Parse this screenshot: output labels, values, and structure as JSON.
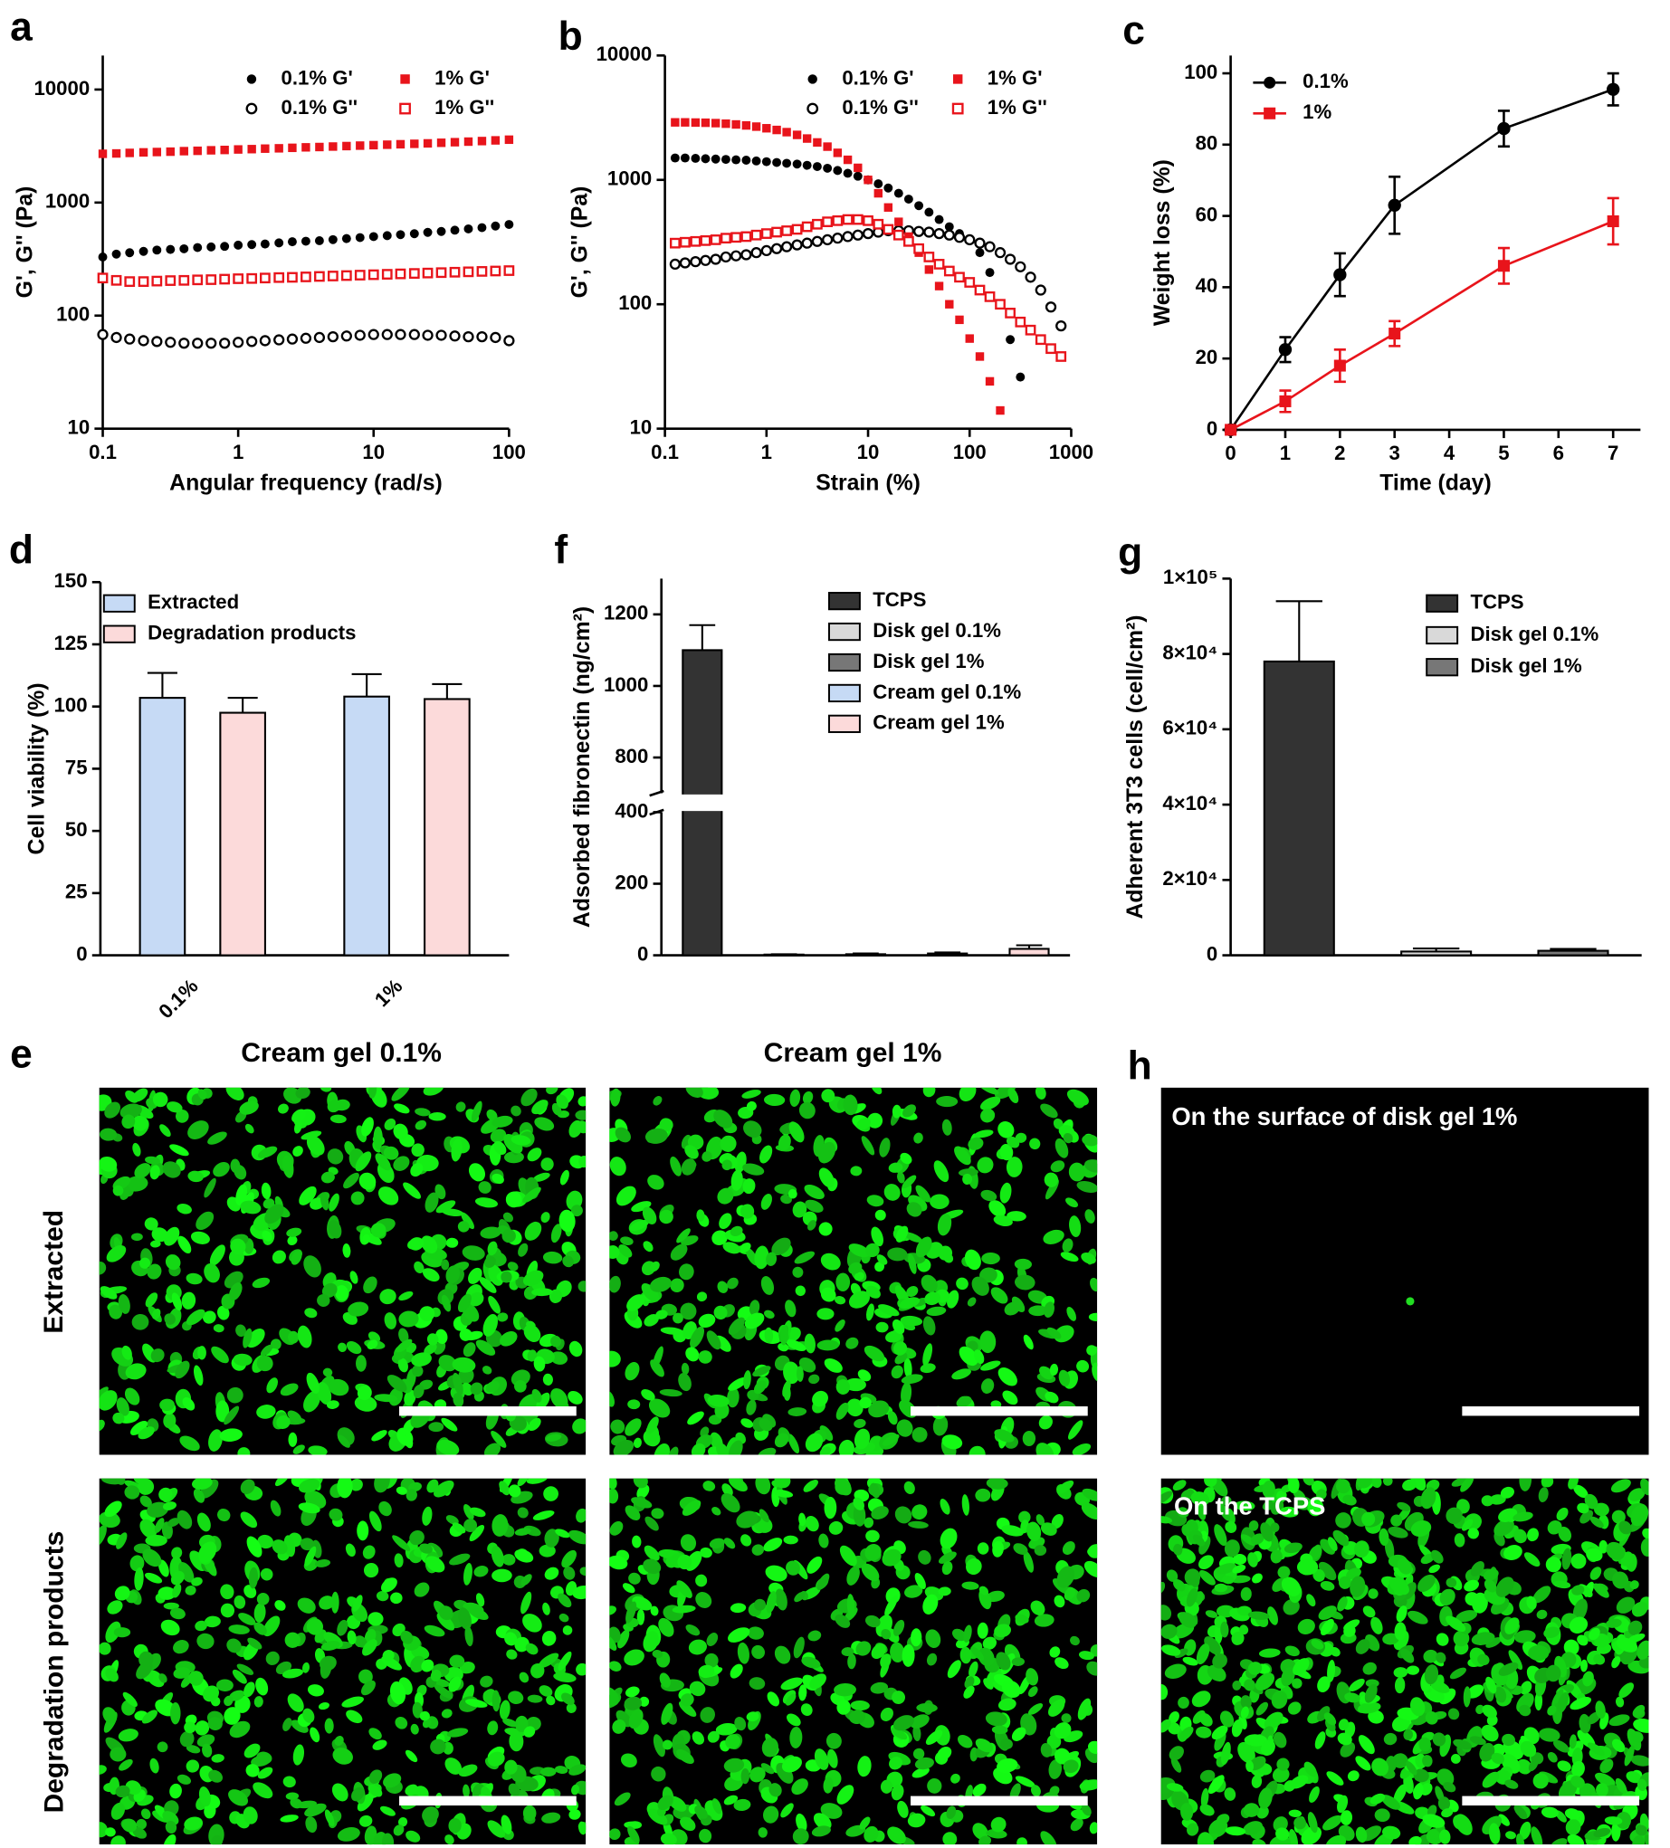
{
  "chart_data": [
    {
      "label": "a",
      "type": "scatter",
      "xlabel": "Angular frequency (rad/s)",
      "ylabel": "G', G'' (Pa)",
      "xscale": "log",
      "yscale": "log",
      "xlim": [
        0.1,
        100
      ],
      "ylim": [
        10,
        20000
      ],
      "xticks": [
        0.1,
        1,
        10,
        100
      ],
      "yticks": [
        10,
        100,
        1000,
        10000
      ],
      "x": [
        0.1,
        0.126,
        0.158,
        0.2,
        0.251,
        0.316,
        0.398,
        0.501,
        0.631,
        0.794,
        1,
        1.26,
        1.58,
        2,
        2.51,
        3.16,
        3.98,
        5.01,
        6.31,
        7.94,
        10,
        12.6,
        15.8,
        20,
        25.1,
        31.6,
        39.8,
        50.1,
        63.1,
        79.4,
        100
      ],
      "series": [
        {
          "name": "0.1% G'",
          "color": "#000000",
          "marker": "circle",
          "filled": true,
          "values": [
            330,
            350,
            360,
            370,
            380,
            385,
            390,
            400,
            405,
            410,
            420,
            425,
            430,
            440,
            450,
            455,
            460,
            470,
            480,
            490,
            500,
            510,
            520,
            530,
            545,
            555,
            570,
            585,
            600,
            620,
            640
          ]
        },
        {
          "name": "0.1% G''",
          "color": "#000000",
          "marker": "circle",
          "filled": false,
          "values": [
            68,
            64,
            62,
            60,
            59,
            58,
            57,
            57,
            57,
            57,
            58,
            59,
            60,
            61,
            62,
            63,
            64,
            65,
            66,
            67,
            68,
            68,
            68,
            68,
            67,
            67,
            66,
            65,
            65,
            64,
            60
          ]
        },
        {
          "name": "1% G'",
          "color": "#e8141b",
          "marker": "square",
          "filled": true,
          "values": [
            2700,
            2720,
            2750,
            2780,
            2800,
            2820,
            2850,
            2870,
            2900,
            2920,
            2950,
            2970,
            3000,
            3020,
            3050,
            3080,
            3100,
            3130,
            3160,
            3190,
            3220,
            3250,
            3280,
            3310,
            3340,
            3380,
            3420,
            3460,
            3500,
            3550,
            3600
          ]
        },
        {
          "name": "1% G''",
          "color": "#e8141b",
          "marker": "square",
          "filled": false,
          "values": [
            215,
            205,
            200,
            200,
            202,
            204,
            205,
            207,
            208,
            210,
            212,
            213,
            215,
            217,
            218,
            220,
            222,
            224,
            226,
            228,
            230,
            232,
            234,
            236,
            238,
            240,
            242,
            244,
            246,
            248,
            250
          ]
        }
      ]
    },
    {
      "label": "b",
      "type": "scatter",
      "xlabel": "Strain (%)",
      "ylabel": "G', G'' (Pa)",
      "xscale": "log",
      "yscale": "log",
      "xlim": [
        0.1,
        1000
      ],
      "ylim": [
        10,
        10000
      ],
      "xticks": [
        0.1,
        1,
        10,
        100,
        1000
      ],
      "yticks": [
        10,
        100,
        1000,
        10000
      ],
      "x": [
        0.126,
        0.158,
        0.2,
        0.251,
        0.316,
        0.398,
        0.501,
        0.631,
        0.794,
        1,
        1.26,
        1.58,
        2,
        2.51,
        3.16,
        3.98,
        5.01,
        6.31,
        7.94,
        10,
        12.6,
        15.8,
        20,
        25.1,
        31.6,
        39.8,
        50.1,
        63.1,
        79.4,
        100,
        126,
        158,
        200,
        251,
        316,
        398,
        501,
        631,
        794
      ],
      "series": [
        {
          "name": "0.1% G'",
          "color": "#000000",
          "marker": "circle",
          "filled": true,
          "values": [
            1500,
            1500,
            1490,
            1480,
            1470,
            1460,
            1450,
            1440,
            1420,
            1400,
            1380,
            1360,
            1340,
            1310,
            1280,
            1240,
            1190,
            1130,
            1070,
            1000,
            930,
            860,
            780,
            700,
            620,
            550,
            480,
            420,
            370,
            330,
            260,
            180,
            100,
            52,
            26,
            null,
            null,
            null,
            null
          ]
        },
        {
          "name": "0.1% G''",
          "color": "#000000",
          "marker": "circle",
          "filled": false,
          "values": [
            210,
            215,
            220,
            225,
            230,
            240,
            245,
            250,
            260,
            270,
            280,
            290,
            300,
            310,
            320,
            330,
            340,
            350,
            360,
            370,
            380,
            390,
            390,
            390,
            385,
            380,
            370,
            360,
            345,
            330,
            310,
            290,
            260,
            230,
            200,
            165,
            130,
            95,
            67
          ]
        },
        {
          "name": "1% G'",
          "color": "#e8141b",
          "marker": "square",
          "filled": true,
          "values": [
            2900,
            2900,
            2890,
            2880,
            2860,
            2830,
            2790,
            2740,
            2680,
            2600,
            2520,
            2420,
            2300,
            2150,
            2000,
            1850,
            1650,
            1450,
            1250,
            1000,
            780,
            600,
            460,
            350,
            260,
            190,
            140,
            100,
            75,
            53,
            38,
            24,
            14,
            null,
            null,
            null,
            null,
            null,
            null
          ]
        },
        {
          "name": "1% G''",
          "color": "#e8141b",
          "marker": "square",
          "filled": false,
          "values": [
            310,
            315,
            320,
            325,
            330,
            340,
            345,
            350,
            360,
            370,
            380,
            390,
            400,
            420,
            440,
            460,
            470,
            480,
            480,
            470,
            440,
            400,
            360,
            320,
            280,
            240,
            210,
            185,
            165,
            150,
            130,
            115,
            100,
            85,
            72,
            62,
            52,
            44,
            38
          ]
        }
      ]
    },
    {
      "label": "c",
      "type": "line",
      "xlabel": "Time (day)",
      "ylabel": "Weight loss (%)",
      "xlim": [
        0,
        7.5
      ],
      "ylim": [
        0,
        105
      ],
      "xticks": [
        0,
        1,
        2,
        3,
        4,
        5,
        6,
        7
      ],
      "yticks": [
        0,
        20,
        40,
        60,
        80,
        100
      ],
      "x": [
        0,
        1,
        2,
        3,
        5,
        7
      ],
      "series": [
        {
          "name": "0.1%",
          "color": "#000000",
          "marker": "circle",
          "values": [
            0,
            22.5,
            43.5,
            63,
            84.5,
            95.5
          ],
          "errors": [
            0,
            3.5,
            6,
            8,
            5,
            4.5
          ]
        },
        {
          "name": "1%",
          "color": "#e8141b",
          "marker": "square",
          "values": [
            0,
            8,
            18,
            27,
            46,
            58.5
          ],
          "errors": [
            0,
            3,
            4.5,
            3.5,
            5,
            6.5
          ]
        }
      ]
    },
    {
      "label": "d",
      "type": "bar",
      "ylabel": "Cell viability (%)",
      "ylim": [
        0,
        150
      ],
      "yticks": [
        0,
        25,
        50,
        75,
        100,
        125,
        150
      ],
      "categories": [
        "0.1%",
        "1%"
      ],
      "series": [
        {
          "name": "Extracted",
          "color": "#c6daf5",
          "values": [
            103.5,
            104
          ],
          "errors": [
            10,
            9
          ]
        },
        {
          "name": "Degradation products",
          "color": "#fcdada",
          "values": [
            97.5,
            103
          ],
          "errors": [
            6,
            6
          ]
        }
      ]
    },
    {
      "label": "f",
      "type": "bar",
      "ylabel": "Adsorbed fibronectin (ng/cm²)",
      "ylim": [
        0,
        1300
      ],
      "axis_break": [
        400,
        700
      ],
      "yticks": [
        0,
        200,
        400,
        800,
        1000,
        1200
      ],
      "series": [
        {
          "name": "TCPS",
          "color": "#333333",
          "values": [
            1100
          ],
          "errors": [
            70
          ]
        },
        {
          "name": "Disk gel 0.1%",
          "color": "#d9d9d9",
          "values": [
            2
          ],
          "errors": [
            1
          ]
        },
        {
          "name": "Disk gel 1%",
          "color": "#777777",
          "values": [
            3
          ],
          "errors": [
            2
          ]
        },
        {
          "name": "Cream gel 0.1%",
          "color": "#c6daf5",
          "values": [
            5
          ],
          "errors": [
            3
          ]
        },
        {
          "name": "Cream gel 1%",
          "color": "#fcdada",
          "values": [
            18
          ],
          "errors": [
            10
          ]
        }
      ]
    },
    {
      "label": "g",
      "type": "bar",
      "ylabel": "Adherent 3T3 cells (cell/cm²)",
      "ylim": [
        0,
        100000
      ],
      "yticks": [
        0,
        {
          "value": 20000,
          "label": "2×10⁴"
        },
        {
          "value": 40000,
          "label": "4×10⁴"
        },
        {
          "value": 60000,
          "label": "6×10⁴"
        },
        {
          "value": 80000,
          "label": "8×10⁴"
        },
        {
          "value": 100000,
          "label": "1×10⁵"
        }
      ],
      "series": [
        {
          "name": "TCPS",
          "color": "#333333",
          "values": [
            78000
          ],
          "errors": [
            16000
          ]
        },
        {
          "name": "Disk gel 0.1%",
          "color": "#d9d9d9",
          "values": [
            1000
          ],
          "errors": [
            800
          ]
        },
        {
          "name": "Disk gel 1%",
          "color": "#777777",
          "values": [
            1200
          ],
          "errors": [
            500
          ]
        }
      ]
    }
  ],
  "micrographs": {
    "e": {
      "label": "e",
      "columns": [
        "Cream gel 0.1%",
        "Cream gel 1%"
      ],
      "rows": [
        "Extracted",
        "Degradation products"
      ]
    },
    "h": {
      "label": "h",
      "captions": [
        "On the surface of disk gel 1%",
        "On the TCPS"
      ]
    }
  }
}
